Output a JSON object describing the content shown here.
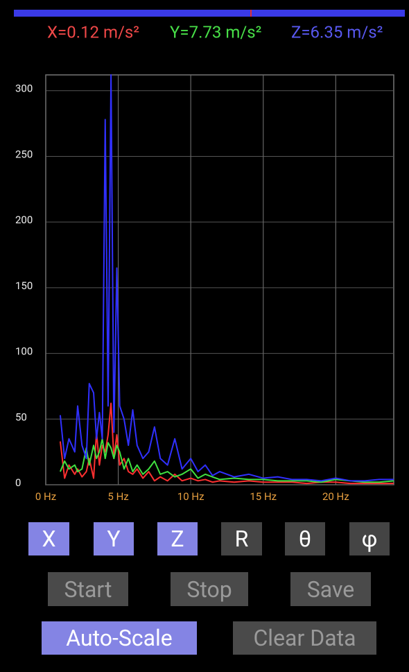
{
  "readout": [
    {
      "text": "X=0.12 m/s²",
      "color": "#f04848"
    },
    {
      "text": "Y=7.73 m/s²",
      "color": "#48e048"
    },
    {
      "text": "Z=6.35 m/s²",
      "color": "#5858f0"
    }
  ],
  "chart_data": {
    "type": "line",
    "x": [
      1.0,
      1.3,
      1.6,
      2.0,
      2.2,
      2.5,
      2.8,
      3.0,
      3.3,
      3.5,
      3.7,
      3.9,
      4.1,
      4.3,
      4.5,
      4.7,
      4.9,
      5.1,
      5.4,
      5.7,
      6.0,
      6.3,
      6.7,
      7.1,
      7.5,
      7.9,
      8.4,
      8.9,
      9.4,
      10,
      10.5,
      11,
      11.5,
      12,
      13,
      14,
      15,
      16,
      17,
      18,
      19,
      20,
      21,
      22,
      23,
      24
    ],
    "series": [
      {
        "color": "#ff3030",
        "values": [
          33,
          5,
          15,
          8,
          12,
          6,
          10,
          20,
          5,
          40,
          15,
          30,
          25,
          38,
          62,
          20,
          38,
          15,
          20,
          10,
          8,
          12,
          5,
          10,
          3,
          6,
          3,
          8,
          3,
          5,
          3,
          4,
          2,
          3,
          2,
          3,
          2,
          2,
          2,
          1,
          2,
          2,
          1,
          1,
          1,
          1
        ]
      },
      {
        "color": "#40e040",
        "values": [
          10,
          18,
          12,
          15,
          10,
          12,
          28,
          15,
          30,
          20,
          25,
          35,
          20,
          32,
          28,
          20,
          30,
          25,
          12,
          20,
          10,
          15,
          8,
          12,
          18,
          8,
          10,
          6,
          8,
          12,
          5,
          8,
          6,
          4,
          5,
          4,
          4,
          3,
          3,
          3,
          2,
          4,
          3,
          2,
          2,
          3
        ]
      },
      {
        "color": "#3030ff",
        "values": [
          53,
          20,
          35,
          25,
          60,
          30,
          20,
          77,
          70,
          35,
          55,
          35,
          278,
          60,
          312,
          40,
          165,
          60,
          50,
          30,
          57,
          30,
          20,
          25,
          44,
          20,
          15,
          35,
          12,
          20,
          10,
          15,
          7,
          10,
          6,
          8,
          5,
          6,
          4,
          4,
          3,
          5,
          3,
          3,
          4,
          4
        ]
      }
    ],
    "xlim": [
      0,
      24
    ],
    "ylim": [
      0,
      312
    ],
    "xticks": [
      {
        "value": 0,
        "label": "0 Hz"
      },
      {
        "value": 5,
        "label": "5 Hz"
      },
      {
        "value": 10,
        "label": "10 Hz"
      },
      {
        "value": 15,
        "label": "15 Hz"
      },
      {
        "value": 20,
        "label": "20 Hz"
      }
    ],
    "yticks": [
      0,
      50,
      100,
      150,
      200,
      250,
      300
    ],
    "grid": true
  },
  "buttons": [
    {
      "label": "X",
      "active": true
    },
    {
      "label": "Y",
      "active": true
    },
    {
      "label": "Z",
      "active": true
    },
    {
      "label": "R",
      "active": false
    },
    {
      "label": "θ",
      "active": false
    },
    {
      "label": "φ",
      "active": false
    },
    {
      "label": "Start",
      "active": false
    },
    {
      "label": "Stop",
      "active": false
    },
    {
      "label": "Save",
      "active": false
    },
    {
      "label": "Auto-Scale",
      "active": true
    },
    {
      "label": "Clear Data",
      "active": false
    }
  ]
}
